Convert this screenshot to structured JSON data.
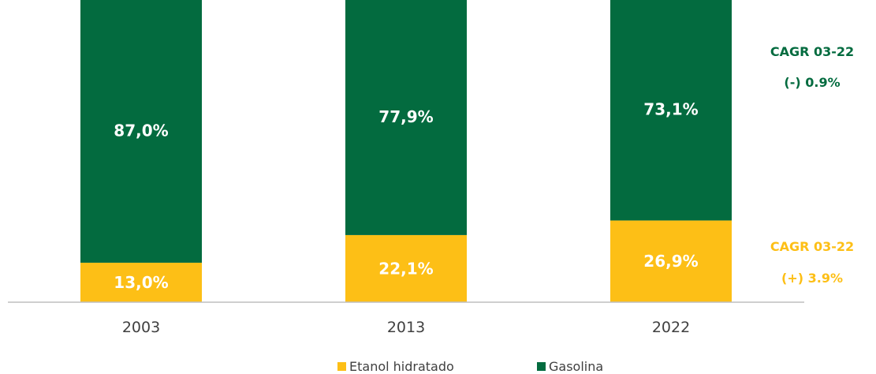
{
  "colors": {
    "etanol": "#FDBF16",
    "gasolina": "#036B3F",
    "axis": "#BFBFBF"
  },
  "chart_data": {
    "type": "bar",
    "stacked": true,
    "categories": [
      "2003",
      "2013",
      "2022"
    ],
    "series": [
      {
        "name": "Etanol hidratado",
        "values": [
          13.0,
          22.1,
          26.9
        ],
        "labels": [
          "13,0%",
          "22,1%",
          "26,9%"
        ]
      },
      {
        "name": "Gasolina",
        "values": [
          87.0,
          77.9,
          73.1
        ],
        "labels": [
          "87,0%",
          "77,9%",
          "73,1%"
        ]
      }
    ],
    "ylim": [
      0,
      100
    ],
    "grid": false,
    "legend": "bottom",
    "annotations": {
      "gasolina_cagr": {
        "title": "CAGR 03-22",
        "value": "(-) 0.9%"
      },
      "etanol_cagr": {
        "title": "CAGR 03-22",
        "value": "(+) 3.9%"
      }
    }
  }
}
